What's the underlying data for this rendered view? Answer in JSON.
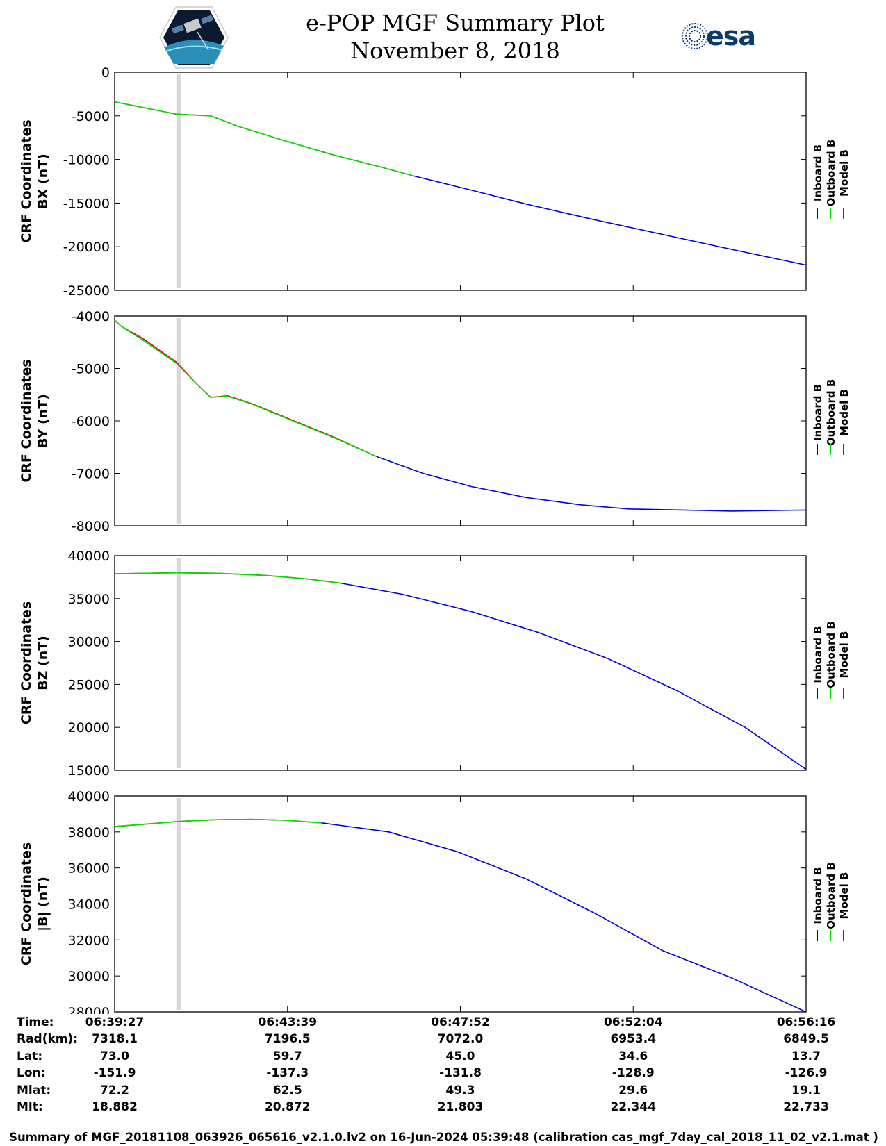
{
  "header": {
    "title": "e-POP MGF Summary Plot",
    "date": "November 8, 2018",
    "right_logo_text": "esa"
  },
  "colors": {
    "inboard": "#0000dd",
    "outboard": "#00dd00",
    "model": "#dd0000",
    "gap_band": "#d9d9d9"
  },
  "legend": [
    "Inboard B",
    "Outboard B",
    "Model B"
  ],
  "chart_data": [
    {
      "type": "line",
      "id": "bx",
      "ylabel_line1": "CRF Coordinates",
      "ylabel_line2": "BX (nT)",
      "ylim": [
        -25000,
        0
      ],
      "yticks": [
        0,
        -5000,
        -10000,
        -15000,
        -20000,
        -25000
      ],
      "ytick_labels": [
        "0",
        "-5000",
        "-10000",
        "-15000",
        "-20000",
        "-25000"
      ],
      "xlim": [
        0,
        1009
      ],
      "gap_interval_s": [
        90,
        97
      ],
      "outboard_end_s": 437,
      "series": [
        {
          "name": "Outboard B",
          "x": [
            0,
            90,
            140,
            180,
            250,
            320,
            390,
            437
          ],
          "y": [
            -3400,
            -4800,
            -5000,
            -6200,
            -7900,
            -9500,
            -10900,
            -11900
          ]
        },
        {
          "name": "Inboard B",
          "x": [
            437,
            520,
            600,
            700,
            800,
            900,
            1009
          ],
          "y": [
            -11900,
            -13500,
            -15100,
            -16900,
            -18600,
            -20300,
            -22100
          ]
        },
        {
          "name": "Model B",
          "x": [
            0,
            90,
            140,
            180,
            250,
            320,
            390,
            437
          ],
          "y": [
            -3400,
            -4800,
            -5000,
            -6200,
            -7900,
            -9500,
            -10900,
            -11900
          ]
        }
      ]
    },
    {
      "type": "line",
      "id": "by",
      "ylabel_line1": "CRF Coordinates",
      "ylabel_line2": "BY (nT)",
      "ylim": [
        -8000,
        -4000
      ],
      "yticks": [
        -4000,
        -5000,
        -6000,
        -7000,
        -8000
      ],
      "ytick_labels": [
        "-4000",
        "-5000",
        "-6000",
        "-7000",
        "-8000"
      ],
      "xlim": [
        0,
        1009
      ],
      "gap_interval_s": [
        90,
        97
      ],
      "outboard_end_s": 382,
      "series": [
        {
          "name": "Outboard B",
          "x": [
            0,
            10,
            40,
            90,
            120,
            140,
            165,
            200,
            260,
            320,
            382
          ],
          "y": [
            -4080,
            -4200,
            -4450,
            -4900,
            -5300,
            -5550,
            -5530,
            -5680,
            -6000,
            -6320,
            -6680
          ]
        },
        {
          "name": "Inboard B",
          "x": [
            382,
            450,
            520,
            600,
            680,
            750,
            830,
            900,
            1009
          ],
          "y": [
            -6680,
            -7000,
            -7250,
            -7460,
            -7600,
            -7680,
            -7700,
            -7720,
            -7700
          ]
        },
        {
          "name": "Model B",
          "x": [
            0,
            10,
            40,
            90,
            120,
            140,
            165,
            200,
            260,
            320,
            382
          ],
          "y": [
            -4080,
            -4200,
            -4420,
            -4880,
            -5300,
            -5550,
            -5520,
            -5670,
            -5990,
            -6310,
            -6680
          ]
        }
      ]
    },
    {
      "type": "line",
      "id": "bz",
      "ylabel_line1": "CRF Coordinates",
      "ylabel_line2": "BZ (nT)",
      "ylim": [
        15000,
        40000
      ],
      "yticks": [
        40000,
        35000,
        30000,
        25000,
        20000,
        15000
      ],
      "ytick_labels": [
        "40000",
        "35000",
        "30000",
        "25000",
        "20000",
        "15000"
      ],
      "xlim": [
        0,
        1009
      ],
      "gap_interval_s": [
        90,
        97
      ],
      "outboard_end_s": 330,
      "series": [
        {
          "name": "Outboard B",
          "x": [
            0,
            90,
            150,
            220,
            280,
            330
          ],
          "y": [
            37900,
            38000,
            37950,
            37700,
            37300,
            36800
          ]
        },
        {
          "name": "Inboard B",
          "x": [
            330,
            420,
            520,
            620,
            720,
            820,
            920,
            1009
          ],
          "y": [
            36800,
            35500,
            33500,
            31000,
            28000,
            24300,
            20000,
            15100
          ]
        },
        {
          "name": "Model B",
          "x": [
            0,
            90,
            150,
            220,
            280,
            330
          ],
          "y": [
            37900,
            38000,
            37950,
            37700,
            37300,
            36800
          ]
        }
      ]
    },
    {
      "type": "line",
      "id": "bmag",
      "ylabel_line1": "CRF Coordinates",
      "ylabel_line2": "|B| (nT)",
      "ylim": [
        28000,
        40000
      ],
      "yticks": [
        40000,
        38000,
        36000,
        34000,
        32000,
        30000,
        28000
      ],
      "ytick_labels": [
        "40000",
        "38000",
        "36000",
        "34000",
        "32000",
        "30000",
        "28000"
      ],
      "xlim": [
        0,
        1009
      ],
      "gap_interval_s": [
        90,
        97
      ],
      "outboard_end_s": 303,
      "series": [
        {
          "name": "Outboard B",
          "x": [
            0,
            50,
            100,
            150,
            200,
            250,
            303
          ],
          "y": [
            38300,
            38450,
            38600,
            38680,
            38700,
            38650,
            38500
          ]
        },
        {
          "name": "Inboard B",
          "x": [
            303,
            400,
            500,
            600,
            700,
            800,
            900,
            1009
          ],
          "y": [
            38500,
            38000,
            36900,
            35400,
            33500,
            31400,
            29900,
            28000
          ]
        },
        {
          "name": "Model B",
          "x": [
            0,
            50,
            100,
            150,
            200,
            250,
            303
          ],
          "y": [
            38300,
            38450,
            38600,
            38680,
            38700,
            38650,
            38500
          ]
        }
      ]
    }
  ],
  "info_table": {
    "labels": [
      "Time:",
      "Rad(km):",
      "Lat:",
      "Lon:",
      "Mlat:",
      "Mlt:"
    ],
    "columns": [
      [
        "06:39:27",
        "7318.1",
        "73.0",
        "-151.9",
        "72.2",
        "18.882"
      ],
      [
        "06:43:39",
        "7196.5",
        "59.7",
        "-137.3",
        "62.5",
        "20.872"
      ],
      [
        "06:47:52",
        "7072.0",
        "45.0",
        "-131.8",
        "49.3",
        "21.803"
      ],
      [
        "06:52:04",
        "6953.4",
        "34.6",
        "-128.9",
        "29.6",
        "22.344"
      ],
      [
        "06:56:16",
        "6849.5",
        "13.7",
        "-126.9",
        "19.1",
        "22.733"
      ]
    ]
  },
  "footer": "Summary of MGF_20181108_063926_065616_v2.1.0.lv2 on 16-Jun-2024 05:39:48 (calibration cas_mgf_7day_cal_2018_11_02_v2.1.mat )"
}
